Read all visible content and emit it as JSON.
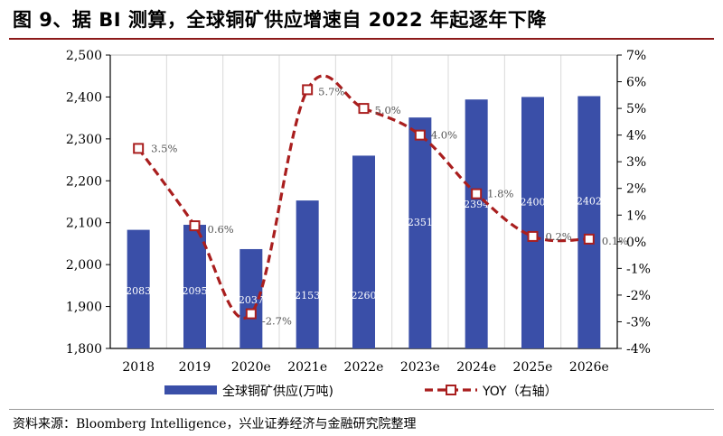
{
  "title": "图 9、据 BI 测算，全球铜矿供应增速自 2022 年起逐年下降",
  "source": "资料来源：Bloomberg Intelligence，兴业证券经济与金融研究院整理",
  "colors": {
    "bar": "#3A4FA8",
    "line": "#A91E1E",
    "marker_fill": "#ffffff",
    "grid": "#d9d9d9",
    "rule": "#8c1a1a"
  },
  "chart_data": {
    "type": "bar",
    "categories": [
      "2018",
      "2019",
      "2020e",
      "2021e",
      "2022e",
      "2023e",
      "2024e",
      "2025e",
      "2026e"
    ],
    "series": [
      {
        "name": "全球铜矿供应(万吨)",
        "type": "bar",
        "axis": "left",
        "values": [
          2083,
          2095,
          2037,
          2153,
          2260,
          2351,
          2394,
          2400,
          2402
        ],
        "labels": [
          "2083",
          "2095",
          "2037",
          "2153",
          "2260",
          "2351",
          "2394",
          "2400",
          "2402"
        ]
      },
      {
        "name": "YOY（右轴）",
        "type": "line",
        "axis": "right",
        "values": [
          3.5,
          0.6,
          -2.7,
          5.7,
          5.0,
          4.0,
          1.8,
          0.2,
          0.1
        ],
        "labels": [
          "3.5%",
          "0.6%",
          "-2.7%",
          "5.7%",
          "5.0%",
          "4.0%",
          "1.8%",
          "0.2%",
          "0.1%"
        ]
      }
    ],
    "left_axis": {
      "min": 1800,
      "max": 2500,
      "step": 100,
      "ticks": [
        "1,800",
        "1,900",
        "2,000",
        "2,100",
        "2,200",
        "2,300",
        "2,400",
        "2,500"
      ]
    },
    "right_axis": {
      "min": -4,
      "max": 7,
      "step": 1,
      "ticks": [
        "-4%",
        "-3%",
        "-2%",
        "-1%",
        "0%",
        "1%",
        "2%",
        "3%",
        "4%",
        "5%",
        "6%",
        "7%"
      ]
    },
    "legend": {
      "position": "bottom",
      "bar_label": "全球铜矿供应(万吨)",
      "line_label": "YOY（右轴）"
    }
  }
}
